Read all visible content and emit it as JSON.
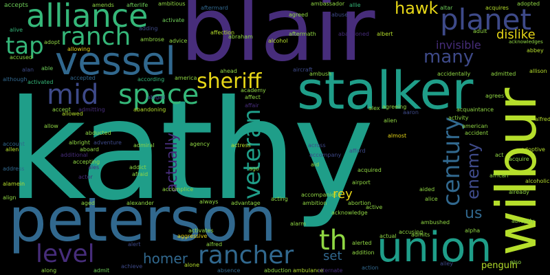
{
  "colors": {
    "background": "#000000",
    "teal": "#1f9e89",
    "darkblue": "#3e4a89",
    "purple": "#472d7b",
    "steel": "#31688e",
    "green": "#35b779",
    "lime": "#b5de2b",
    "yellow": "#e6d617",
    "olive": "#90d743",
    "ltgreen": "#6ece58",
    "cyan": "#26828e",
    "indigo": "#482173",
    "violet": "#440154"
  },
  "words": [
    {
      "text": "kathy"
    },
    {
      "text": "blair"
    },
    {
      "text": "peterson"
    },
    {
      "text": "wilbur"
    },
    {
      "text": "stalker"
    },
    {
      "text": "union"
    },
    {
      "text": "alliance"
    },
    {
      "text": "vessel"
    },
    {
      "text": "ranch"
    },
    {
      "text": "planet"
    },
    {
      "text": "space"
    },
    {
      "text": "mid"
    },
    {
      "text": "tap"
    },
    {
      "text": "sheriff"
    },
    {
      "text": "veteran"
    },
    {
      "text": "century"
    },
    {
      "text": "rancher"
    },
    {
      "text": "level"
    },
    {
      "text": "th"
    },
    {
      "text": "hawk"
    },
    {
      "text": "many"
    },
    {
      "text": "dislike"
    },
    {
      "text": "enemy"
    },
    {
      "text": "actually"
    },
    {
      "text": "homer"
    },
    {
      "text": "invisible"
    },
    {
      "text": "us"
    },
    {
      "text": "rey"
    },
    {
      "text": "set"
    },
    {
      "text": "penguin"
    },
    {
      "text": "accepts"
    },
    {
      "text": "alive"
    },
    {
      "text": "accused"
    },
    {
      "text": "alan"
    },
    {
      "text": "although"
    },
    {
      "text": "accept"
    },
    {
      "text": "allow"
    },
    {
      "text": "account"
    },
    {
      "text": "allen"
    },
    {
      "text": "address"
    },
    {
      "text": "alamein"
    },
    {
      "text": "align"
    },
    {
      "text": "along"
    },
    {
      "text": "admit"
    },
    {
      "text": "achieve"
    },
    {
      "text": "alone"
    },
    {
      "text": "absence"
    },
    {
      "text": "abduction"
    },
    {
      "text": "ambulance"
    },
    {
      "text": "action"
    },
    {
      "text": "alley"
    },
    {
      "text": "also"
    },
    {
      "text": "amends"
    },
    {
      "text": "afterlife"
    },
    {
      "text": "ambitious"
    },
    {
      "text": "aftermard"
    },
    {
      "text": "agreed"
    },
    {
      "text": "ambassador"
    },
    {
      "text": "abuse"
    },
    {
      "text": "allie"
    },
    {
      "text": "altar"
    },
    {
      "text": "acquires"
    },
    {
      "text": "adopted"
    },
    {
      "text": "adding"
    },
    {
      "text": "activate"
    },
    {
      "text": "abraham"
    },
    {
      "text": "aftermath"
    },
    {
      "text": "alcohol"
    },
    {
      "text": "abandoned"
    },
    {
      "text": "albert"
    },
    {
      "text": "adult"
    },
    {
      "text": "acknowledges"
    },
    {
      "text": "abbey"
    },
    {
      "text": "adopt"
    },
    {
      "text": "allowing"
    },
    {
      "text": "ambrose"
    },
    {
      "text": "advice"
    },
    {
      "text": "affection"
    },
    {
      "text": "able"
    },
    {
      "text": "activated"
    },
    {
      "text": "accepted"
    },
    {
      "text": "according"
    },
    {
      "text": "america"
    },
    {
      "text": "ahead"
    },
    {
      "text": "ambush"
    },
    {
      "text": "aircraft"
    },
    {
      "text": "accidentally"
    },
    {
      "text": "admitted"
    },
    {
      "text": "allison"
    },
    {
      "text": "abigail"
    },
    {
      "text": "academy"
    },
    {
      "text": "affect"
    },
    {
      "text": "affair"
    },
    {
      "text": "alex"
    },
    {
      "text": "agreeing"
    },
    {
      "text": "aaron"
    },
    {
      "text": "agrees"
    },
    {
      "text": "admitting"
    },
    {
      "text": "abandoning"
    },
    {
      "text": "acquaintance"
    },
    {
      "text": "activity"
    },
    {
      "text": "allowed"
    },
    {
      "text": "alien"
    },
    {
      "text": "american"
    },
    {
      "text": "alfred"
    },
    {
      "text": "abducted"
    },
    {
      "text": "adventure"
    },
    {
      "text": "almost"
    },
    {
      "text": "accident"
    },
    {
      "text": "albright"
    },
    {
      "text": "aboard"
    },
    {
      "text": "admiral"
    },
    {
      "text": "agency"
    },
    {
      "text": "actress"
    },
    {
      "text": "across"
    },
    {
      "text": "afford"
    },
    {
      "text": "act"
    },
    {
      "text": "adoptive"
    },
    {
      "text": "additional"
    },
    {
      "text": "accompany"
    },
    {
      "text": "accepting"
    },
    {
      "text": "acquire"
    },
    {
      "text": "ales"
    },
    {
      "text": "addict"
    },
    {
      "text": "ago"
    },
    {
      "text": "aid"
    },
    {
      "text": "acquired"
    },
    {
      "text": "alcoholic"
    },
    {
      "text": "actor"
    },
    {
      "text": "afraid"
    },
    {
      "text": "airport"
    },
    {
      "text": "african"
    },
    {
      "text": "already"
    },
    {
      "text": "accomplice"
    },
    {
      "text": "always"
    },
    {
      "text": "acting"
    },
    {
      "text": "accompanies"
    },
    {
      "text": "aided"
    },
    {
      "text": "aged"
    },
    {
      "text": "alexander"
    },
    {
      "text": "advantage"
    },
    {
      "text": "ambition"
    },
    {
      "text": "abortion"
    },
    {
      "text": "alice"
    },
    {
      "text": "acknowledge"
    },
    {
      "text": "active"
    },
    {
      "text": "ambushed"
    },
    {
      "text": "abruptly"
    },
    {
      "text": "aggressive"
    },
    {
      "text": "activates"
    },
    {
      "text": "alarm"
    },
    {
      "text": "actual"
    },
    {
      "text": "accusing"
    },
    {
      "text": "alpha"
    },
    {
      "text": "alert"
    },
    {
      "text": "alfred"
    },
    {
      "text": "alerted"
    },
    {
      "text": "addition"
    },
    {
      "text": "admits"
    },
    {
      "text": "alternate"
    }
  ]
}
